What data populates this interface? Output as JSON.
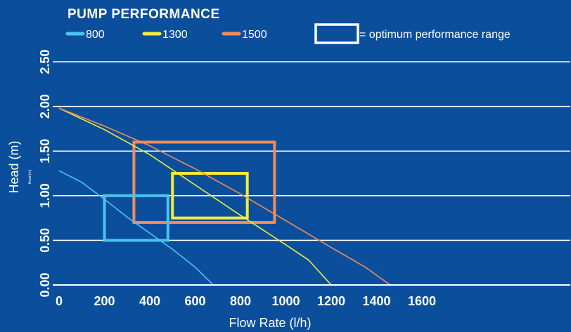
{
  "chart_data": {
    "type": "line",
    "title": "PUMP PERFORMANCE",
    "xlabel": "Flow Rate (l/h)",
    "ylabel": "Head (m)",
    "ylabel_small": "Head (m)",
    "xlim": [
      0,
      1700
    ],
    "ylim": [
      0,
      2.5
    ],
    "x_ticks": [
      "0",
      "200",
      "400",
      "600",
      "800",
      "1000",
      "1200",
      "1400",
      "1600"
    ],
    "y_ticks": [
      "0.00",
      "0.50",
      "1.00",
      "1.50",
      "2.00",
      "2.50"
    ],
    "grid": "horizontal",
    "legend_position": "top",
    "optimum_label": "= optimum performance range",
    "series": [
      {
        "name": "800",
        "color": "#4cc3f0",
        "x": [
          0,
          100,
          200,
          300,
          400,
          500,
          600,
          680
        ],
        "y": [
          1.28,
          1.15,
          0.96,
          0.76,
          0.58,
          0.4,
          0.2,
          0.0
        ],
        "optimum": {
          "x": [
            200,
            480
          ],
          "y": [
            0.5,
            1.0
          ]
        }
      },
      {
        "name": "1300",
        "color": "#f2ec3c",
        "x": [
          0,
          200,
          400,
          600,
          800,
          1000,
          1100,
          1200
        ],
        "y": [
          1.98,
          1.74,
          1.46,
          1.12,
          0.78,
          0.45,
          0.28,
          0.0
        ],
        "optimum": {
          "x": [
            500,
            830
          ],
          "y": [
            0.75,
            1.25
          ]
        }
      },
      {
        "name": "1500",
        "color": "#f08c5a",
        "x": [
          0,
          200,
          400,
          600,
          800,
          1000,
          1200,
          1350,
          1460
        ],
        "y": [
          1.98,
          1.78,
          1.56,
          1.3,
          1.02,
          0.72,
          0.42,
          0.2,
          0.0
        ],
        "optimum": {
          "x": [
            330,
            950
          ],
          "y": [
            0.7,
            1.6
          ]
        }
      }
    ]
  }
}
